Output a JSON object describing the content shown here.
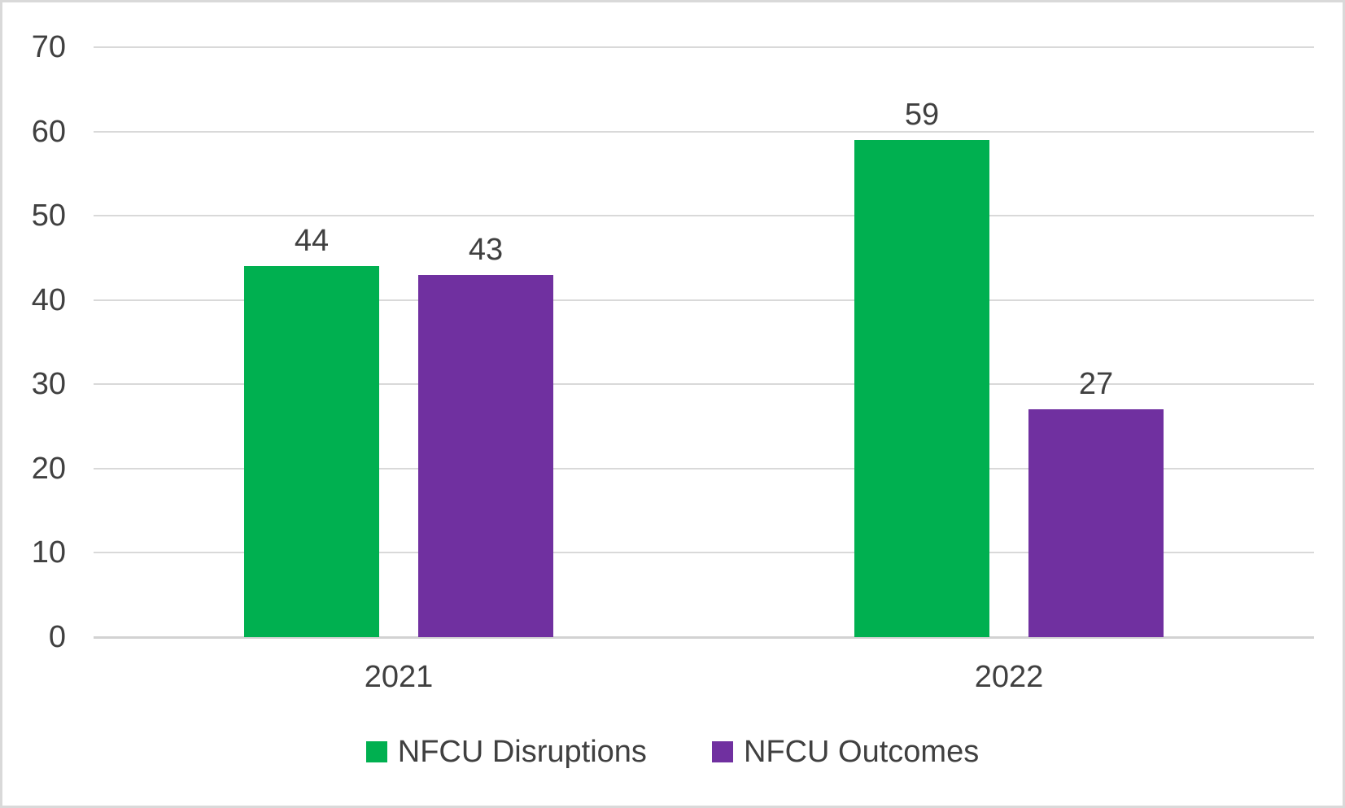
{
  "chart_data": {
    "type": "bar",
    "categories": [
      "2021",
      "2022"
    ],
    "series": [
      {
        "name": "NFCU Disruptions",
        "color": "#00B050",
        "values": [
          44,
          59
        ]
      },
      {
        "name": "NFCU Outcomes",
        "color": "#7030A0",
        "values": [
          43,
          27
        ]
      }
    ],
    "title": "",
    "xlabel": "",
    "ylabel": "",
    "ylim": [
      0,
      70
    ],
    "yticks": [
      0,
      10,
      20,
      30,
      40,
      50,
      60,
      70
    ],
    "grid": true,
    "data_labels": true,
    "legend_position": "bottom"
  },
  "styles": {
    "background": "#FFFFFF",
    "border_color": "#D9D9D9",
    "grid_color": "#D9D9D9",
    "axis_color": "#D2D2D2",
    "text_color": "#404040"
  }
}
